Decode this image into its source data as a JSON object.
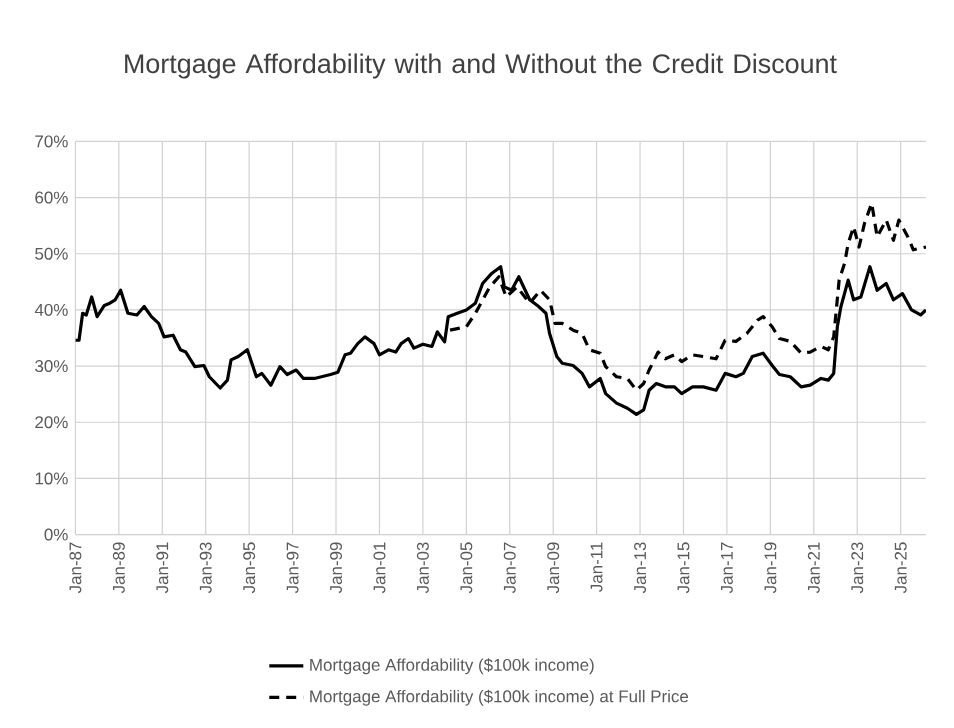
{
  "chart_data": {
    "type": "line",
    "title": "Mortgage Affordability with and Without the Credit Discount",
    "xlim": [
      "1987-01",
      "2026-03"
    ],
    "ylim": [
      0,
      70
    ],
    "xticks": [
      {
        "value": "1987-01",
        "label": "Jan-87"
      },
      {
        "value": "1989-01",
        "label": "Jan-89"
      },
      {
        "value": "1991-01",
        "label": "Jan-91"
      },
      {
        "value": "1993-01",
        "label": "Jan-93"
      },
      {
        "value": "1995-01",
        "label": "Jan-95"
      },
      {
        "value": "1997-01",
        "label": "Jan-97"
      },
      {
        "value": "1999-01",
        "label": "Jan-99"
      },
      {
        "value": "2001-01",
        "label": "Jan-01"
      },
      {
        "value": "2003-01",
        "label": "Jan-03"
      },
      {
        "value": "2005-01",
        "label": "Jan-05"
      },
      {
        "value": "2007-01",
        "label": "Jan-07"
      },
      {
        "value": "2009-01",
        "label": "Jan-09"
      },
      {
        "value": "2011-01",
        "label": "Jan-11"
      },
      {
        "value": "2013-01",
        "label": "Jan-13"
      },
      {
        "value": "2015-01",
        "label": "Jan-15"
      },
      {
        "value": "2017-01",
        "label": "Jan-17"
      },
      {
        "value": "2019-01",
        "label": "Jan-19"
      },
      {
        "value": "2021-01",
        "label": "Jan-21"
      },
      {
        "value": "2023-01",
        "label": "Jan-23"
      },
      {
        "value": "2025-01",
        "label": "Jan-25"
      }
    ],
    "yticks": [
      {
        "value": 0,
        "label": "0%"
      },
      {
        "value": 10,
        "label": "10%"
      },
      {
        "value": 20,
        "label": "20%"
      },
      {
        "value": 30,
        "label": "30%"
      },
      {
        "value": 40,
        "label": "40%"
      },
      {
        "value": 50,
        "label": "50%"
      },
      {
        "value": 60,
        "label": "60%"
      },
      {
        "value": 70,
        "label": "70%"
      }
    ],
    "grid": true,
    "legend": "bottom",
    "marker": "none",
    "series": [
      {
        "name": "Mortgage Affordability ($100k income)",
        "color": "#000000",
        "line_style": "solid",
        "x": [
          "1987-01",
          "1987-03",
          "1987-05",
          "1987-07",
          "1987-10",
          "1988-01",
          "1988-05",
          "1988-08",
          "1988-11",
          "1989-02",
          "1989-06",
          "1989-11",
          "1990-03",
          "1990-07",
          "1990-11",
          "1991-02",
          "1991-07",
          "1991-11",
          "1992-02",
          "1992-07",
          "1992-12",
          "1993-03",
          "1993-09",
          "1994-01",
          "1994-03",
          "1994-07",
          "1994-12",
          "1995-05",
          "1995-08",
          "1996-01",
          "1996-06",
          "1996-10",
          "1997-03",
          "1997-07",
          "1998-01",
          "1998-05",
          "1998-10",
          "1999-02",
          "1999-06",
          "1999-09",
          "2000-01",
          "2000-05",
          "2000-10",
          "2001-01",
          "2001-06",
          "2001-10",
          "2002-01",
          "2002-05",
          "2002-08",
          "2003-01",
          "2003-06",
          "2003-09",
          "2004-01",
          "2004-03",
          "2004-08",
          "2005-01",
          "2005-06",
          "2005-10",
          "2006-03",
          "2006-08",
          "2006-10",
          "2007-02",
          "2007-06",
          "2007-12",
          "2008-05",
          "2008-09",
          "2008-11",
          "2009-03",
          "2009-06",
          "2009-12",
          "2010-05",
          "2010-09",
          "2011-03",
          "2011-06",
          "2011-12",
          "2012-06",
          "2012-11",
          "2013-03",
          "2013-06",
          "2013-10",
          "2014-03",
          "2014-08",
          "2014-12",
          "2015-06",
          "2015-12",
          "2016-07",
          "2016-12",
          "2017-06",
          "2017-10",
          "2018-03",
          "2018-09",
          "2019-02",
          "2019-06",
          "2019-12",
          "2020-06",
          "2020-11",
          "2021-05",
          "2021-09",
          "2021-12",
          "2022-02",
          "2022-04",
          "2022-08",
          "2022-11",
          "2023-03",
          "2023-08",
          "2023-12",
          "2024-05",
          "2024-09",
          "2025-02",
          "2025-07",
          "2025-12",
          "2026-03"
        ],
        "values": [
          34.6,
          34.6,
          39.4,
          39.1,
          42.3,
          38.8,
          40.8,
          41.2,
          41.8,
          43.5,
          39.4,
          39.1,
          40.6,
          38.8,
          37.6,
          35.2,
          35.5,
          32.9,
          32.5,
          29.9,
          30.1,
          28.1,
          26.1,
          27.5,
          31.1,
          31.7,
          32.9,
          28.1,
          28.7,
          26.6,
          29.9,
          28.5,
          29.3,
          27.8,
          27.8,
          28.1,
          28.5,
          28.9,
          32.0,
          32.3,
          34.0,
          35.2,
          34.0,
          32.0,
          32.9,
          32.5,
          34.0,
          34.9,
          33.2,
          33.9,
          33.5,
          36.1,
          34.3,
          38.8,
          39.4,
          40.0,
          41.2,
          44.7,
          46.5,
          47.7,
          44.1,
          43.5,
          45.9,
          41.8,
          40.6,
          39.4,
          35.8,
          31.7,
          30.5,
          30.1,
          28.7,
          26.3,
          27.8,
          25.1,
          23.4,
          22.5,
          21.4,
          22.2,
          25.7,
          26.9,
          26.3,
          26.3,
          25.1,
          26.3,
          26.3,
          25.7,
          28.7,
          28.1,
          28.7,
          31.7,
          32.3,
          30.1,
          28.5,
          28.1,
          26.3,
          26.6,
          27.8,
          27.5,
          28.7,
          37.0,
          40.6,
          45.3,
          41.8,
          42.3,
          47.7,
          43.5,
          44.7,
          41.8,
          42.9,
          40.0,
          39.1,
          40.0
        ]
      },
      {
        "name": "Mortgage Affordability ($100k income) at Full Price",
        "color": "#000000",
        "line_style": "dashed",
        "x": [
          "2004-04",
          "2005-01",
          "2005-06",
          "2006-02",
          "2006-07",
          "2006-11",
          "2007-05",
          "2007-12",
          "2008-06",
          "2008-11",
          "2009-02",
          "2009-06",
          "2009-12",
          "2010-05",
          "2010-09",
          "2011-03",
          "2011-06",
          "2011-12",
          "2012-06",
          "2012-11",
          "2013-03",
          "2013-06",
          "2013-11",
          "2014-03",
          "2014-08",
          "2014-12",
          "2015-06",
          "2015-12",
          "2016-07",
          "2016-12",
          "2017-06",
          "2017-12",
          "2018-06",
          "2018-09",
          "2019-02",
          "2019-06",
          "2019-12",
          "2020-06",
          "2020-11",
          "2021-05",
          "2021-09",
          "2021-12",
          "2022-03",
          "2022-06",
          "2022-08",
          "2022-11",
          "2023-02",
          "2023-05",
          "2023-09",
          "2023-12",
          "2024-05",
          "2024-09",
          "2024-12",
          "2025-05",
          "2025-08",
          "2026-03"
        ],
        "values": [
          36.4,
          37.0,
          39.4,
          44.1,
          45.9,
          42.3,
          44.1,
          41.2,
          43.5,
          41.8,
          37.6,
          37.6,
          36.4,
          35.8,
          32.9,
          32.3,
          29.9,
          28.1,
          27.8,
          25.7,
          26.9,
          29.3,
          32.5,
          31.3,
          32.0,
          30.8,
          32.0,
          31.7,
          31.3,
          34.6,
          34.4,
          35.8,
          38.2,
          38.8,
          37.0,
          34.9,
          34.4,
          32.3,
          32.5,
          33.5,
          32.9,
          35.2,
          45.3,
          48.3,
          51.8,
          54.8,
          51.2,
          55.4,
          59.0,
          53.0,
          56.0,
          52.4,
          56.0,
          53.0,
          50.7,
          51.2
        ]
      }
    ]
  }
}
